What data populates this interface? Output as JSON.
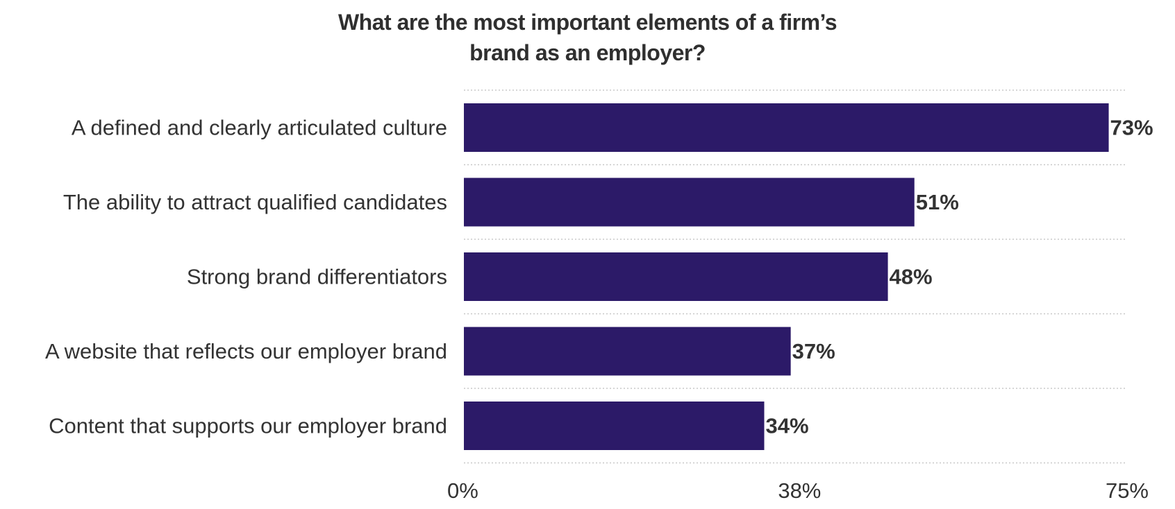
{
  "chart_data": {
    "type": "bar",
    "orientation": "horizontal",
    "title_lines": [
      "What are the most important elements of a firm’s",
      "brand as an employer?"
    ],
    "categories": [
      "A defined and clearly articulated culture",
      "The ability to attract qualified candidates",
      "Strong brand differentiators",
      "A website that reflects our employer brand",
      "Content that supports our employer brand"
    ],
    "values": [
      73,
      51,
      48,
      37,
      34
    ],
    "value_labels": [
      "73%",
      "51%",
      "48%",
      "37%",
      "34%"
    ],
    "xlim": [
      0,
      75
    ],
    "x_ticks": [
      0,
      38,
      75
    ],
    "x_tick_labels": [
      "0%",
      "38%",
      "75%"
    ],
    "grid": "dotted horizontal separators",
    "colors": {
      "bar": "#2c1a68",
      "text": "#333333",
      "grid": "#c8c8c8"
    }
  }
}
